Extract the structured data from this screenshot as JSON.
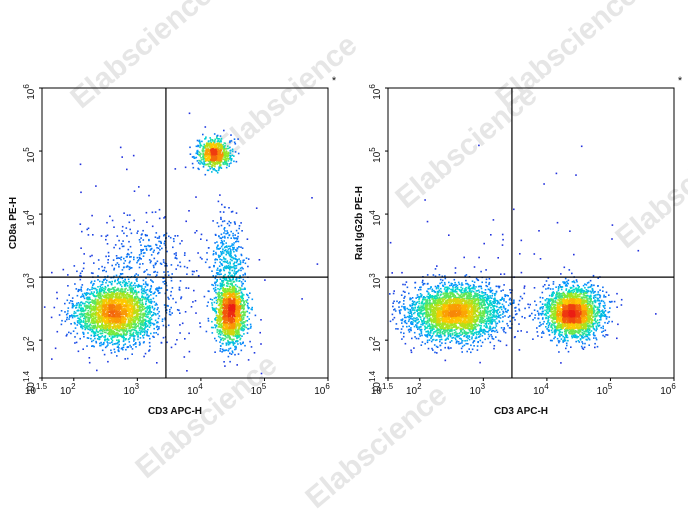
{
  "watermark": "Elabscience",
  "chart_data": [
    {
      "type": "scatter",
      "subtype": "flow-cytometry-pseudocolor-dot-plot",
      "title": "",
      "corner_mark": "*",
      "xlabel": "CD3 APC-H",
      "ylabel": "CD8a PE-H",
      "xscale": "log",
      "yscale": "log",
      "xlim_exp": [
        1.5,
        6
      ],
      "ylim_exp": [
        1.4,
        6
      ],
      "x_ticks": [
        {
          "base": "10",
          "exp": "1.5",
          "v": 1.5
        },
        {
          "base": "10",
          "exp": "2",
          "v": 2
        },
        {
          "base": "10",
          "exp": "3",
          "v": 3
        },
        {
          "base": "10",
          "exp": "4",
          "v": 4
        },
        {
          "base": "10",
          "exp": "5",
          "v": 5
        },
        {
          "base": "10",
          "exp": "6",
          "v": 6
        }
      ],
      "y_ticks": [
        {
          "base": "10",
          "exp": "1.4",
          "v": 1.4
        },
        {
          "base": "10",
          "exp": "2",
          "v": 2
        },
        {
          "base": "10",
          "exp": "3",
          "v": 3
        },
        {
          "base": "10",
          "exp": "4",
          "v": 4
        },
        {
          "base": "10",
          "exp": "5",
          "v": 5
        },
        {
          "base": "10",
          "exp": "6",
          "v": 6
        }
      ],
      "quadrant_gate": {
        "x": 3.45,
        "y": 3.0
      },
      "grid": false,
      "populations": [
        {
          "x": 2.65,
          "y": 2.45,
          "sx": 0.32,
          "sy": 0.24,
          "n": 2600
        },
        {
          "x": 4.45,
          "y": 2.45,
          "sx": 0.12,
          "sy": 0.24,
          "n": 1500
        },
        {
          "x": 4.2,
          "y": 4.97,
          "sx": 0.13,
          "sy": 0.11,
          "n": 750
        },
        {
          "x": 4.4,
          "y": 3.3,
          "sx": 0.13,
          "sy": 0.35,
          "n": 350
        },
        {
          "x": 3.1,
          "y": 3.25,
          "sx": 0.45,
          "sy": 0.35,
          "n": 300
        },
        {
          "x": 3.6,
          "y": 3.0,
          "sx": 0.9,
          "sy": 0.9,
          "n": 150
        }
      ]
    },
    {
      "type": "scatter",
      "subtype": "flow-cytometry-pseudocolor-dot-plot",
      "title": "",
      "corner_mark": "*",
      "xlabel": "CD3 APC-H",
      "ylabel": "Rat IgG2b PE-H",
      "xscale": "log",
      "yscale": "log",
      "xlim_exp": [
        1.5,
        6
      ],
      "ylim_exp": [
        1.4,
        6
      ],
      "x_ticks": [
        {
          "base": "10",
          "exp": "1.5",
          "v": 1.5
        },
        {
          "base": "10",
          "exp": "2",
          "v": 2
        },
        {
          "base": "10",
          "exp": "3",
          "v": 3
        },
        {
          "base": "10",
          "exp": "4",
          "v": 4
        },
        {
          "base": "10",
          "exp": "5",
          "v": 5
        },
        {
          "base": "10",
          "exp": "6",
          "v": 6
        }
      ],
      "y_ticks": [
        {
          "base": "10",
          "exp": "1.4",
          "v": 1.4
        },
        {
          "base": "10",
          "exp": "2",
          "v": 2
        },
        {
          "base": "10",
          "exp": "3",
          "v": 3
        },
        {
          "base": "10",
          "exp": "4",
          "v": 4
        },
        {
          "base": "10",
          "exp": "5",
          "v": 5
        },
        {
          "base": "10",
          "exp": "6",
          "v": 6
        }
      ],
      "quadrant_gate": {
        "x": 3.45,
        "y": 3.0
      },
      "grid": false,
      "populations": [
        {
          "x": 2.55,
          "y": 2.45,
          "sx": 0.38,
          "sy": 0.22,
          "n": 3000
        },
        {
          "x": 4.4,
          "y": 2.45,
          "sx": 0.22,
          "sy": 0.2,
          "n": 2300
        },
        {
          "x": 3.6,
          "y": 3.3,
          "sx": 1.0,
          "sy": 0.8,
          "n": 60
        }
      ]
    }
  ]
}
